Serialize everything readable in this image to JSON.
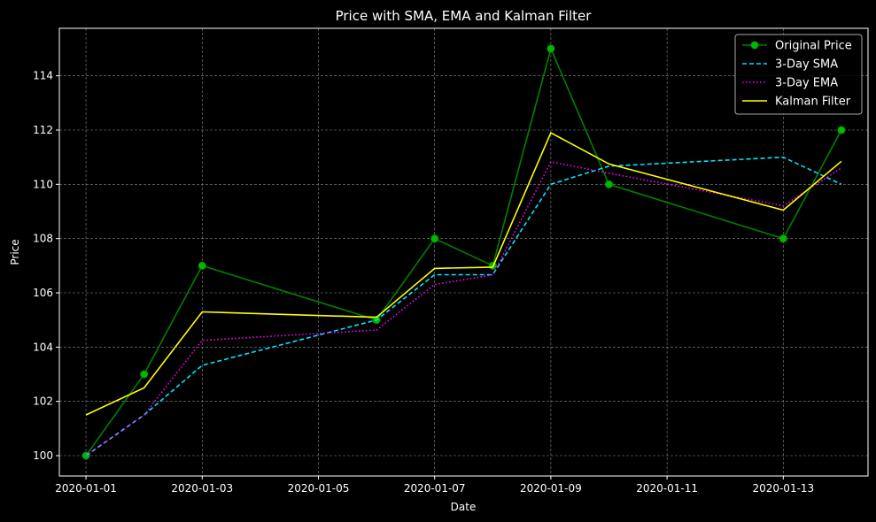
{
  "chart_data": {
    "type": "line",
    "title": "Price with SMA, EMA and Kalman Filter",
    "xlabel": "Date",
    "ylabel": "Price",
    "x": [
      "2020-01-01",
      "2020-01-02",
      "2020-01-03",
      "2020-01-06",
      "2020-01-07",
      "2020-01-08",
      "2020-01-09",
      "2020-01-10",
      "2020-01-13",
      "2020-01-14"
    ],
    "xlim": [
      "2019-12-31T13:00",
      "2020-01-14T11:00"
    ],
    "ylim": [
      99.25,
      115.75
    ],
    "xticks": [
      "2020-01-01",
      "2020-01-03",
      "2020-01-05",
      "2020-01-07",
      "2020-01-09",
      "2020-01-11",
      "2020-01-13"
    ],
    "yticks": [
      100,
      102,
      104,
      106,
      108,
      110,
      112,
      114
    ],
    "grid": true,
    "legend_position": "top-right",
    "series": [
      {
        "name": "Original Price",
        "color": "#008000",
        "style": "solid-markers",
        "values": [
          100,
          103,
          107,
          105,
          108,
          107,
          115,
          110,
          108,
          112
        ]
      },
      {
        "name": "3-Day SMA",
        "color": "#00e5ff",
        "style": "dashed",
        "values": [
          100,
          101.5,
          103.33,
          105,
          106.67,
          106.67,
          110,
          110.67,
          111,
          110
        ]
      },
      {
        "name": "3-Day EMA",
        "color": "#ff00ff",
        "style": "dotted",
        "values": [
          100,
          101.5,
          104.25,
          104.63,
          106.31,
          106.66,
          110.83,
          110.41,
          109.21,
          110.6
        ]
      },
      {
        "name": "Kalman Filter",
        "color": "#ffff00",
        "style": "solid",
        "values": [
          101.5,
          102.5,
          105.3,
          105.1,
          106.9,
          106.95,
          111.9,
          110.75,
          109.05,
          110.85
        ]
      }
    ]
  }
}
